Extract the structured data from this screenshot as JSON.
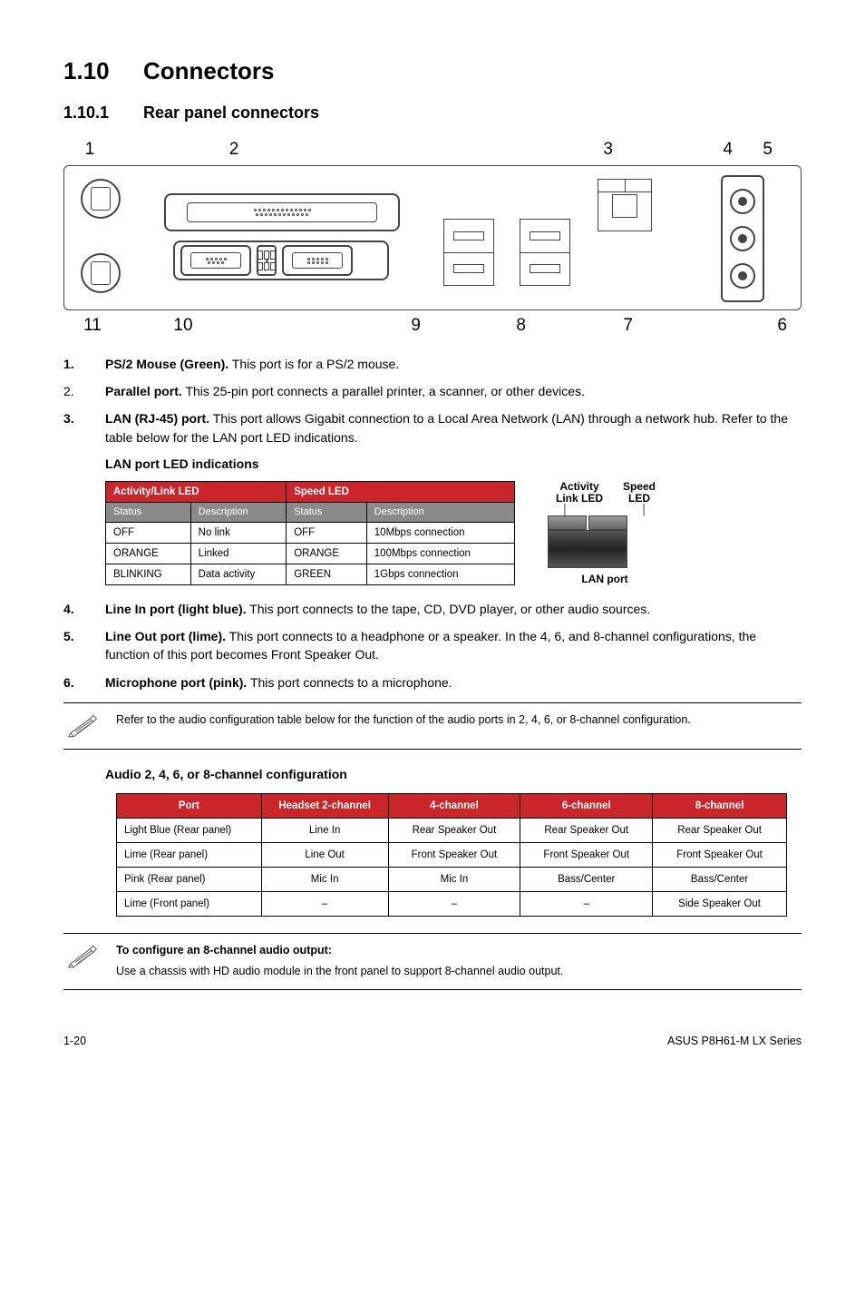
{
  "section": {
    "number": "1.10",
    "title": "Connectors"
  },
  "subsection": {
    "number": "1.10.1",
    "title": "Rear panel connectors"
  },
  "diagram": {
    "top_numbers": [
      "1",
      "2",
      "3",
      "4",
      "5"
    ],
    "bottom_numbers": [
      "11",
      "10",
      "9",
      "8",
      "7",
      "6"
    ]
  },
  "connectors_a": [
    {
      "n": "1.",
      "bold": true,
      "label": "PS/2 Mouse (Green).",
      "desc": "This port is for a PS/2 mouse."
    },
    {
      "n": "2.",
      "bold": false,
      "label": "Parallel port.",
      "desc": "This 25-pin port connects a parallel printer, a scanner, or other devices."
    },
    {
      "n": "3.",
      "bold": true,
      "label": "LAN (RJ-45) port.",
      "desc": "This port allows Gigabit connection to a Local Area Network (LAN) through a network hub. Refer to the table below for the LAN port LED indications."
    }
  ],
  "lan_led": {
    "title": "LAN port LED indications",
    "header_bg": "#c9252b",
    "subheader_bg": "#8a8a8a",
    "h1": "Activity/Link LED",
    "h2": "Speed LED",
    "sub": [
      "Status",
      "Description",
      "Status",
      "Description"
    ],
    "rows": [
      [
        "OFF",
        "No link",
        "OFF",
        "10Mbps connection"
      ],
      [
        "ORANGE",
        "Linked",
        "ORANGE",
        "100Mbps connection"
      ],
      [
        "BLINKING",
        "Data activity",
        "GREEN",
        "1Gbps connection"
      ]
    ],
    "port_labels": {
      "left": "Activity Link LED",
      "right": "Speed LED",
      "caption": "LAN port"
    }
  },
  "connectors_b": [
    {
      "n": "4.",
      "label": "Line In port (light blue).",
      "desc": "This port connects to the tape, CD, DVD player, or other audio sources."
    },
    {
      "n": "5.",
      "label": "Line Out port (lime).",
      "desc": "This port connects to a headphone or a speaker. In the 4, 6, and 8-channel configurations, the function of this port becomes Front Speaker Out."
    },
    {
      "n": "6.",
      "label": "Microphone port (pink).",
      "desc": "This port connects to a microphone."
    }
  ],
  "note1": "Refer to the audio configuration table below for the function of the audio ports in 2, 4, 6, or 8-channel configuration.",
  "audio_cfg": {
    "title": "Audio 2, 4, 6, or 8-channel configuration",
    "header_bg": "#c9252b",
    "columns": [
      "Port",
      "Headset 2-channel",
      "4-channel",
      "6-channel",
      "8-channel"
    ],
    "col_widths": [
      "160px",
      "140px",
      "146px",
      "146px",
      "148px"
    ],
    "rows": [
      [
        "Light Blue (Rear panel)",
        "Line In",
        "Rear Speaker Out",
        "Rear Speaker Out",
        "Rear Speaker Out"
      ],
      [
        "Lime (Rear panel)",
        "Line Out",
        "Front Speaker Out",
        "Front Speaker Out",
        "Front Speaker Out"
      ],
      [
        "Pink (Rear panel)",
        "Mic In",
        "Mic In",
        "Bass/Center",
        "Bass/Center"
      ],
      [
        "Lime (Front panel)",
        "–",
        "–",
        "–",
        "Side Speaker Out"
      ]
    ]
  },
  "note2": {
    "title": "To configure an 8-channel audio output:",
    "body": "Use a chassis with HD audio module in the front panel to support 8-channel audio output."
  },
  "footer": {
    "left": "1-20",
    "right": "ASUS P8H61-M LX Series"
  }
}
